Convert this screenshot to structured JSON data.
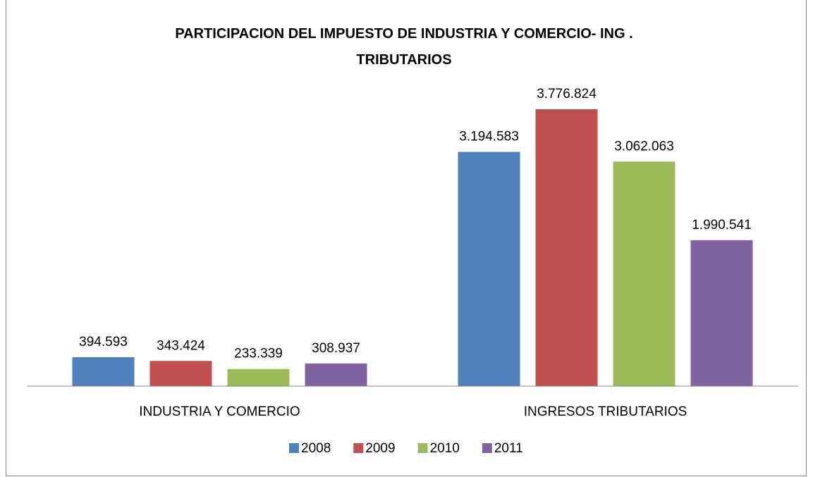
{
  "chart_data": {
    "type": "bar",
    "title": "PARTICIPACION DEL IMPUESTO DE INDUSTRIA Y COMERCIO- ING . TRIBUTARIOS",
    "categories": [
      "INDUSTRIA Y COMERCIO",
      "INGRESOS TRIBUTARIOS"
    ],
    "series": [
      {
        "name": "2008",
        "color": "#4f81bd",
        "values": [
          394593,
          3194583
        ],
        "value_labels": [
          "394.593",
          "3.194.583"
        ]
      },
      {
        "name": "2009",
        "color": "#c0504d",
        "values": [
          343424,
          3776824
        ],
        "value_labels": [
          "343.424",
          "3.776.824"
        ]
      },
      {
        "name": "2010",
        "color": "#9bbb59",
        "values": [
          233339,
          3062063
        ],
        "value_labels": [
          "233.339",
          "3.062.063"
        ]
      },
      {
        "name": "2011",
        "color": "#8064a2",
        "values": [
          308937,
          1990541
        ],
        "value_labels": [
          "308.937",
          "1.990.541"
        ]
      }
    ],
    "legend": "bottom"
  }
}
